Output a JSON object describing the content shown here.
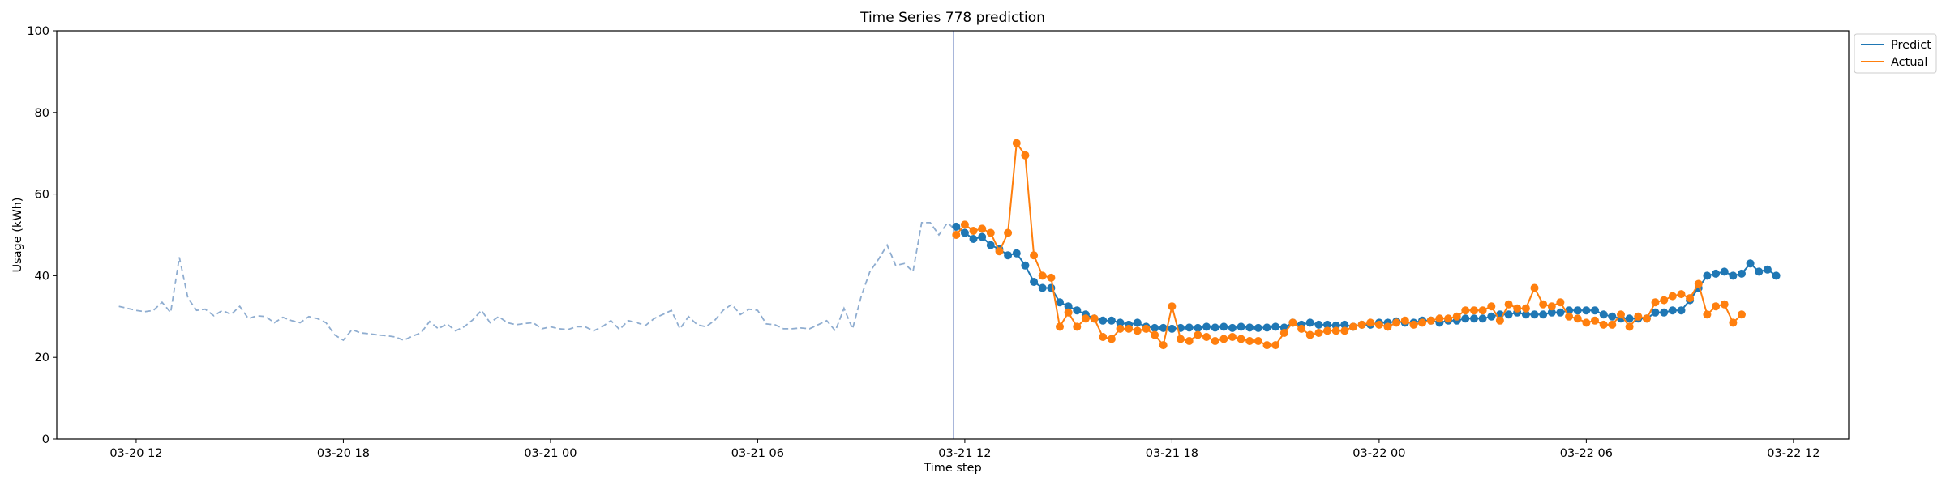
{
  "chart_data": {
    "type": "line",
    "title": "Time Series 778 prediction",
    "xlabel": "Time step",
    "ylabel": "Usage (kWh)",
    "ylim": [
      0,
      100
    ],
    "yticks": [
      0,
      20,
      40,
      60,
      80,
      100
    ],
    "xlim": [
      -9.2,
      198.4
    ],
    "xticks": [
      {
        "pos": 0,
        "label": "03-20 12"
      },
      {
        "pos": 24,
        "label": "03-20 18"
      },
      {
        "pos": 48,
        "label": "03-21 00"
      },
      {
        "pos": 72,
        "label": "03-21 06"
      },
      {
        "pos": 96,
        "label": "03-21 12"
      },
      {
        "pos": 120,
        "label": "03-21 18"
      },
      {
        "pos": 144,
        "label": "03-22 00"
      },
      {
        "pos": 168,
        "label": "03-22 06"
      },
      {
        "pos": 192,
        "label": "03-22 12"
      }
    ],
    "forecast_start_pos": 94.7,
    "history": {
      "x_start": -2,
      "x_step": 1,
      "values": [
        32.5,
        32,
        31.5,
        31.2,
        31.5,
        33.5,
        31,
        44.5,
        34.5,
        31.5,
        31.8,
        30.2,
        31.5,
        30.5,
        32.5,
        29.5,
        30.2,
        30,
        28.5,
        29.8,
        29,
        28.5,
        30,
        29.5,
        28.5,
        25.5,
        24.2,
        26.8,
        26,
        25.8,
        25.5,
        25.3,
        25,
        24.2,
        25.2,
        26,
        28.8,
        27,
        28.2,
        26.5,
        27.5,
        29.2,
        31.5,
        28.5,
        30,
        28.5,
        28,
        28.3,
        28.5,
        27,
        27.5,
        27,
        26.8,
        27.5,
        27.5,
        26.5,
        27.5,
        29,
        26.8,
        29,
        28.5,
        27.8,
        29.5,
        30.5,
        31.5,
        27,
        30,
        28,
        27.5,
        29,
        31.5,
        33,
        30.5,
        31.8,
        31.5,
        28.2,
        28,
        27,
        27,
        27.2,
        27,
        28,
        29,
        26.5,
        32,
        27,
        35,
        41,
        44,
        47.5,
        42.5,
        43,
        41,
        53,
        53,
        50,
        53,
        51
      ]
    },
    "series": [
      {
        "name": "Predict",
        "color": "#1f77b4",
        "x_start": 95,
        "x_step": 1,
        "values": [
          52,
          50.5,
          49,
          49.5,
          47.5,
          46.5,
          45,
          45.5,
          42.5,
          38.5,
          37,
          37,
          33.5,
          32.5,
          31.5,
          30.5,
          29.5,
          29,
          29,
          28.5,
          28,
          28.5,
          27.5,
          27.2,
          27.2,
          27,
          27.2,
          27.3,
          27.2,
          27.5,
          27.3,
          27.5,
          27.2,
          27.5,
          27.3,
          27.2,
          27.3,
          27.5,
          27.3,
          28.5,
          28,
          28.5,
          28,
          28,
          27.8,
          28,
          27.5,
          28,
          28,
          28.5,
          28.5,
          28.8,
          28.5,
          28.5,
          29,
          29,
          28.5,
          29,
          29,
          29.5,
          29.5,
          29.5,
          30,
          30.5,
          30.5,
          31,
          30.5,
          30.5,
          30.5,
          31,
          31,
          31.5,
          31.5,
          31.5,
          31.5,
          30.5,
          30,
          29.5,
          29.5,
          29.5,
          29.5,
          31,
          31,
          31.5,
          31.5,
          34,
          37,
          40,
          40.5,
          41,
          40,
          40.5,
          43,
          41,
          41.5,
          40
        ]
      },
      {
        "name": "Actual",
        "color": "#ff7f0e",
        "x_start": 95,
        "x_step": 1,
        "values": [
          50,
          52.5,
          51,
          51.5,
          50.5,
          46,
          50.5,
          72.5,
          69.5,
          45,
          40,
          39.5,
          27.5,
          31,
          27.5,
          29.5,
          29.5,
          25,
          24.5,
          27,
          27,
          26.5,
          27,
          25.5,
          23,
          32.5,
          24.5,
          24,
          25.5,
          25,
          24,
          24.5,
          25,
          24.5,
          24,
          24,
          23,
          23,
          26,
          28.5,
          27,
          25.5,
          26,
          26.5,
          26.5,
          26.5,
          27.5,
          28,
          28.5,
          28,
          27.5,
          28.5,
          29,
          28,
          28.5,
          29,
          29.5,
          29.5,
          30,
          31.5,
          31.5,
          31.5,
          32.5,
          29,
          33,
          32,
          32,
          37,
          33,
          32.5,
          33.5,
          30,
          29.5,
          28.5,
          29,
          28,
          28,
          30.5,
          27.5,
          30,
          29.5,
          33.5,
          34,
          35,
          35.5,
          34.5,
          38,
          30.5,
          32.5,
          33,
          28.5,
          30.5
        ]
      }
    ],
    "legend": {
      "position": "top-right-outside",
      "entries": [
        "Predict",
        "Actual"
      ]
    },
    "grid": false
  }
}
